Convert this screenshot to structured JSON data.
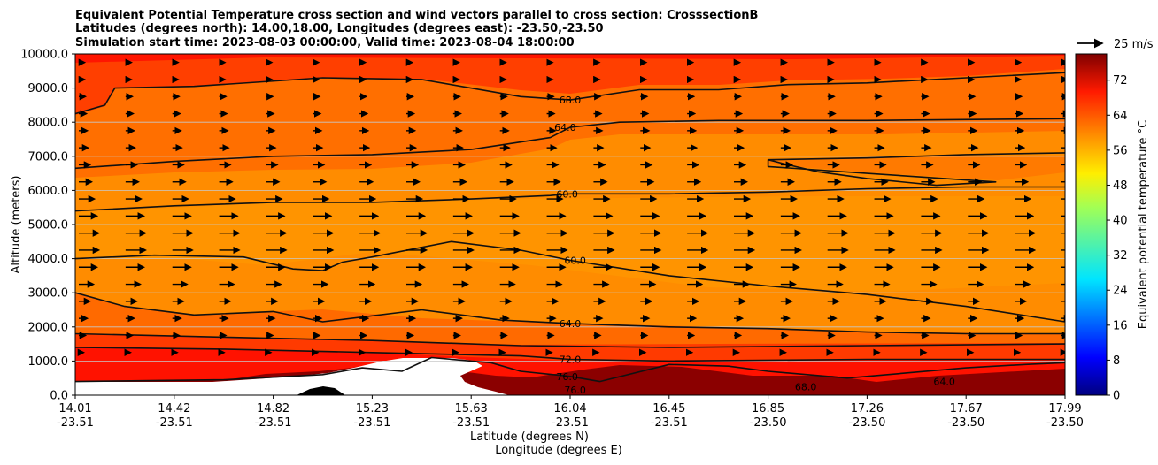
{
  "chart_data": {
    "type": "contour_cross_section",
    "title_lines": [
      "Equivalent Potential Temperature cross section and wind vectors parallel to cross section: CrosssectionB",
      "Latitudes (degrees north): 14.00,18.00, Longitudes (degrees east): -23.50,-23.50",
      "Simulation start time: 2023-08-03 00:00:00, Valid time: 2023-08-04 18:00:00"
    ],
    "ylabel": "Altitude (meters)",
    "xlabel_lat": "Latitude (degrees N)",
    "xlabel_lon": "Longitude (degrees E)",
    "ylim": [
      0,
      10000
    ],
    "yticks": [
      "0.0",
      "1000.0",
      "2000.0",
      "3000.0",
      "4000.0",
      "5000.0",
      "6000.0",
      "7000.0",
      "8000.0",
      "9000.0",
      "10000.0"
    ],
    "xticks": [
      {
        "frac": 0.0,
        "lat": "14.01",
        "lon": "-23.51"
      },
      {
        "frac": 0.1,
        "lat": "14.42",
        "lon": "-23.51"
      },
      {
        "frac": 0.2,
        "lat": "14.82",
        "lon": "-23.51"
      },
      {
        "frac": 0.3,
        "lat": "15.23",
        "lon": "-23.51"
      },
      {
        "frac": 0.4,
        "lat": "15.63",
        "lon": "-23.51"
      },
      {
        "frac": 0.5,
        "lat": "16.04",
        "lon": "-23.51"
      },
      {
        "frac": 0.6,
        "lat": "16.45",
        "lon": "-23.51"
      },
      {
        "frac": 0.7,
        "lat": "16.85",
        "lon": "-23.50"
      },
      {
        "frac": 0.8,
        "lat": "17.26",
        "lon": "-23.50"
      },
      {
        "frac": 0.9,
        "lat": "17.67",
        "lon": "-23.50"
      },
      {
        "frac": 1.0,
        "lat": "17.99",
        "lon": "-23.50"
      }
    ],
    "colorbar": {
      "label": "Equivalent potential temperature $^\\circ$C",
      "label_display": "Equivalent potential temperature °C",
      "range": [
        0,
        78
      ],
      "ticks": [
        "0",
        "8",
        "16",
        "24",
        "32",
        "40",
        "48",
        "56",
        "64",
        "72"
      ]
    },
    "wind_key_label": "25 m/s",
    "contour_labels": [
      {
        "text": "68.0",
        "x": 0.5,
        "alt": 8650
      },
      {
        "text": "64.0",
        "x": 0.495,
        "alt": 7850
      },
      {
        "text": "60.0",
        "x": 0.497,
        "alt": 5900
      },
      {
        "text": "60.0",
        "x": 0.505,
        "alt": 3950
      },
      {
        "text": "64.0",
        "x": 0.5,
        "alt": 2100
      },
      {
        "text": "72.0",
        "x": 0.5,
        "alt": 1050
      },
      {
        "text": "76.0",
        "x": 0.497,
        "alt": 550
      },
      {
        "text": "76.0",
        "x": 0.505,
        "alt": 150
      },
      {
        "text": "68.0",
        "x": 0.738,
        "alt": 250
      },
      {
        "text": "64.0",
        "x": 0.878,
        "alt": 400
      }
    ],
    "contours": [
      {
        "level": 68,
        "points": [
          [
            0,
            8250
          ],
          [
            0.03,
            8500
          ],
          [
            0.04,
            9000
          ],
          [
            0.12,
            9050
          ],
          [
            0.25,
            9300
          ],
          [
            0.35,
            9250
          ],
          [
            0.45,
            8750
          ],
          [
            0.5,
            8650
          ],
          [
            0.57,
            8950
          ],
          [
            0.65,
            8950
          ],
          [
            0.72,
            9100
          ],
          [
            0.8,
            9150
          ],
          [
            0.9,
            9300
          ],
          [
            1.0,
            9450
          ]
        ]
      },
      {
        "level": 64,
        "points": [
          [
            0,
            6650
          ],
          [
            0.1,
            6850
          ],
          [
            0.2,
            7000
          ],
          [
            0.3,
            7050
          ],
          [
            0.4,
            7200
          ],
          [
            0.48,
            7550
          ],
          [
            0.5,
            7850
          ],
          [
            0.55,
            8000
          ],
          [
            0.65,
            8050
          ],
          [
            0.8,
            8050
          ],
          [
            1.0,
            8100
          ]
        ]
      },
      {
        "level": 64,
        "points": [
          [
            1.0,
            7100
          ],
          [
            0.9,
            7050
          ],
          [
            0.8,
            6950
          ],
          [
            0.7,
            6900
          ],
          [
            0.7,
            6700
          ],
          [
            0.8,
            6500
          ],
          [
            0.93,
            6250
          ],
          [
            0.87,
            6150
          ],
          [
            0.8,
            6350
          ],
          [
            0.75,
            6550
          ],
          [
            0.72,
            6750
          ],
          [
            0.7,
            6900
          ]
        ]
      },
      {
        "level": 60,
        "points": [
          [
            0,
            5400
          ],
          [
            0.1,
            5550
          ],
          [
            0.2,
            5650
          ],
          [
            0.3,
            5650
          ],
          [
            0.4,
            5750
          ],
          [
            0.48,
            5850
          ],
          [
            0.5,
            5900
          ],
          [
            0.6,
            5900
          ],
          [
            0.7,
            5950
          ],
          [
            0.8,
            6050
          ],
          [
            0.9,
            6100
          ],
          [
            1.0,
            6100
          ]
        ]
      },
      {
        "level": 60,
        "points": [
          [
            0,
            4000
          ],
          [
            0.08,
            4100
          ],
          [
            0.17,
            4050
          ],
          [
            0.22,
            3700
          ],
          [
            0.25,
            3650
          ],
          [
            0.27,
            3900
          ],
          [
            0.3,
            4050
          ],
          [
            0.38,
            4500
          ],
          [
            0.45,
            4250
          ],
          [
            0.5,
            3950
          ],
          [
            0.6,
            3500
          ],
          [
            0.7,
            3200
          ],
          [
            0.8,
            2950
          ],
          [
            0.9,
            2600
          ],
          [
            1.0,
            2150
          ]
        ]
      },
      {
        "level": 64,
        "points": [
          [
            0,
            3000
          ],
          [
            0.05,
            2600
          ],
          [
            0.12,
            2350
          ],
          [
            0.2,
            2450
          ],
          [
            0.25,
            2150
          ],
          [
            0.35,
            2500
          ],
          [
            0.43,
            2200
          ],
          [
            0.5,
            2100
          ],
          [
            0.6,
            2000
          ],
          [
            0.7,
            1950
          ],
          [
            0.8,
            1850
          ],
          [
            0.9,
            1800
          ],
          [
            1.0,
            1800
          ]
        ]
      },
      {
        "level": 68,
        "points": [
          [
            0,
            1800
          ],
          [
            0.15,
            1700
          ],
          [
            0.3,
            1600
          ],
          [
            0.45,
            1450
          ],
          [
            0.6,
            1400
          ],
          [
            0.8,
            1450
          ],
          [
            1.0,
            1500
          ]
        ]
      },
      {
        "level": 72,
        "points": [
          [
            0,
            1400
          ],
          [
            0.15,
            1350
          ],
          [
            0.3,
            1250
          ],
          [
            0.45,
            1150
          ],
          [
            0.5,
            1050
          ],
          [
            0.6,
            1000
          ],
          [
            0.8,
            1050
          ],
          [
            1.0,
            1050
          ]
        ]
      },
      {
        "level": 76,
        "points": [
          [
            0,
            400
          ],
          [
            0.15,
            450
          ],
          [
            0.25,
            600
          ],
          [
            0.29,
            800
          ],
          [
            0.33,
            700
          ],
          [
            0.36,
            1100
          ],
          [
            0.42,
            950
          ],
          [
            0.45,
            700
          ],
          [
            0.5,
            550
          ],
          [
            0.53,
            400
          ],
          [
            0.6,
            900
          ],
          [
            0.66,
            850
          ],
          [
            0.7,
            700
          ],
          [
            0.78,
            500
          ],
          [
            0.9,
            800
          ],
          [
            0.96,
            900
          ],
          [
            1.0,
            950
          ]
        ]
      }
    ]
  }
}
